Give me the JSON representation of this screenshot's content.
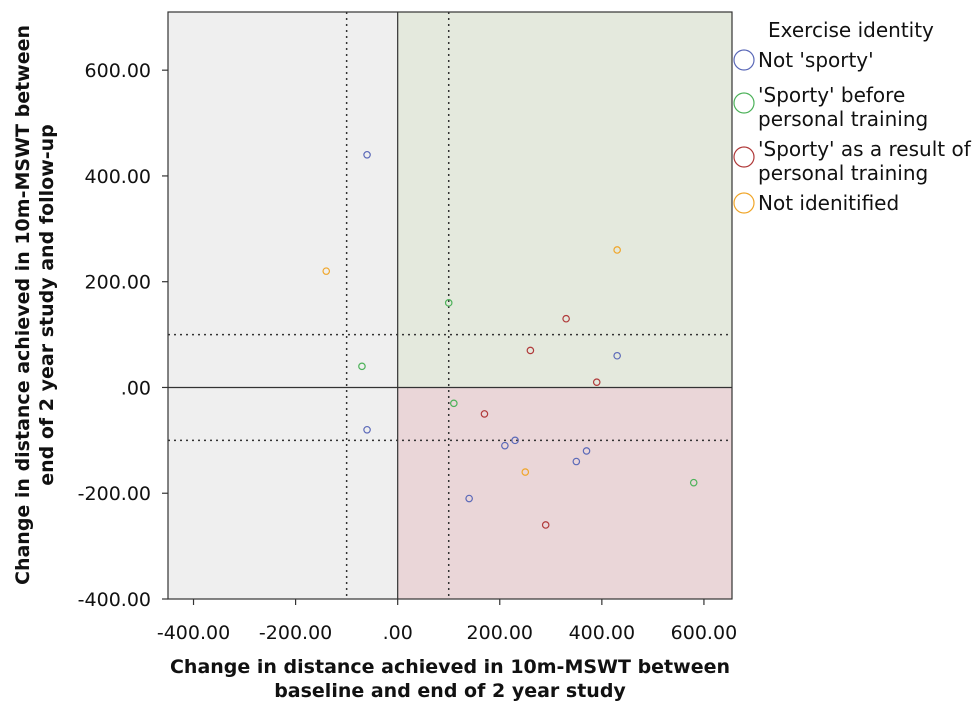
{
  "chart_data": {
    "type": "scatter",
    "title": "",
    "xlabel": [
      "Change in distance achieved in 10m-MSWT between",
      "baseline and end of 2 year study"
    ],
    "ylabel": [
      "Change in distance achieved in 10m-MSWT between",
      "end of 2 year study and follow-up"
    ],
    "xlim": [
      -450,
      655
    ],
    "ylim": [
      -400,
      710
    ],
    "xticks": [
      -400,
      -200,
      0,
      200,
      400,
      600
    ],
    "xtick_labels": [
      "-400.00",
      "-200.00",
      ".00",
      "200.00",
      "400.00",
      "600.00"
    ],
    "yticks": [
      600,
      400,
      200,
      0,
      -200,
      -400
    ],
    "ytick_labels": [
      "600.00",
      "400.00",
      "200.00",
      ".00",
      "-200.00",
      "-400.00"
    ],
    "reference_lines": {
      "solid_x": 0,
      "solid_y": 0,
      "dotted_x": [
        -100,
        100
      ],
      "dotted_y": [
        100,
        -100
      ]
    },
    "regions": [
      {
        "name": "left",
        "color": "#efefef"
      },
      {
        "name": "upper-right",
        "color": "#e4e9dd"
      },
      {
        "name": "lower-right",
        "color": "#ead6d8"
      }
    ],
    "legend": {
      "title": "Exercise identity",
      "placement": "right",
      "items": [
        {
          "label": [
            "Not 'sporty'"
          ],
          "color": "#5b69b8"
        },
        {
          "label": [
            "'Sporty' before",
            "personal training"
          ],
          "color": "#4db25a"
        },
        {
          "label": [
            "'Sporty' as a result of",
            "personal training"
          ],
          "color": "#b03a3a"
        },
        {
          "label": [
            "Not idenitified"
          ],
          "color": "#f0a62a"
        }
      ]
    },
    "series": [
      {
        "name": "Not 'sporty'",
        "color": "#5b69b8",
        "points": [
          [
            -60,
            440
          ],
          [
            -60,
            -80
          ],
          [
            430,
            60
          ],
          [
            370,
            -120
          ],
          [
            350,
            -140
          ],
          [
            230,
            -100
          ],
          [
            210,
            -110
          ],
          [
            140,
            -210
          ]
        ]
      },
      {
        "name": "'Sporty' before personal training",
        "color": "#4db25a",
        "points": [
          [
            -70,
            40
          ],
          [
            100,
            160
          ],
          [
            110,
            -30
          ],
          [
            580,
            -180
          ]
        ]
      },
      {
        "name": "'Sporty' as a result of personal training",
        "color": "#b03a3a",
        "points": [
          [
            330,
            130
          ],
          [
            260,
            70
          ],
          [
            390,
            10
          ],
          [
            170,
            -50
          ],
          [
            290,
            -260
          ]
        ]
      },
      {
        "name": "Not idenitified",
        "color": "#f0a62a",
        "points": [
          [
            -140,
            220
          ],
          [
            430,
            260
          ],
          [
            250,
            -160
          ]
        ]
      }
    ]
  }
}
